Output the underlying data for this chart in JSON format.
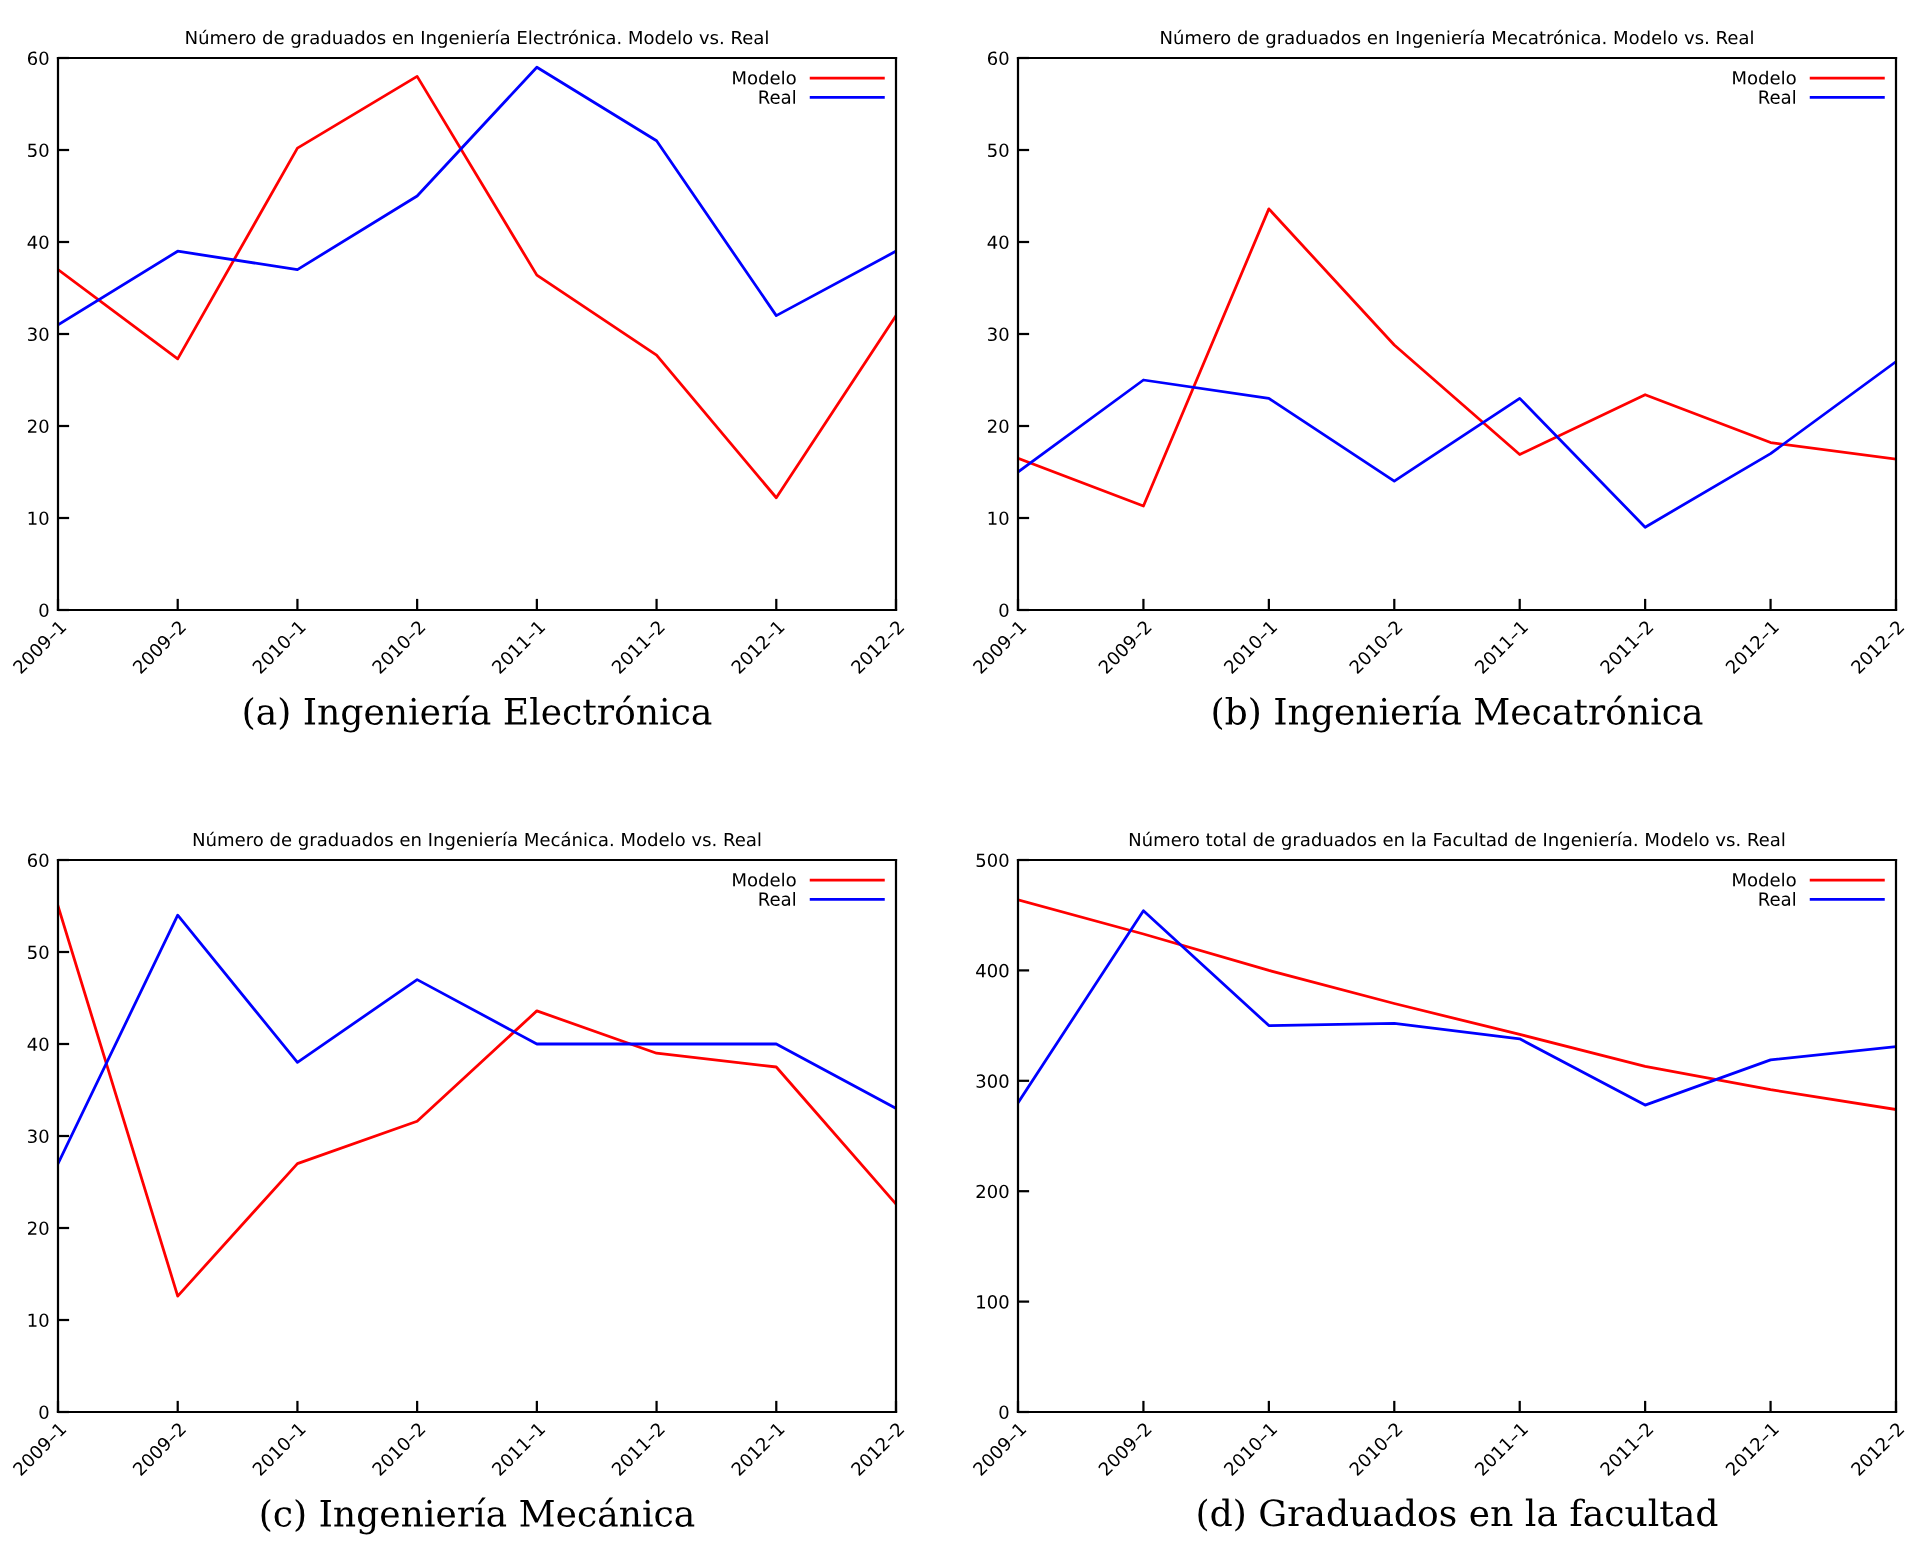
{
  "chart_data": [
    {
      "type": "line",
      "title": "Número de graduados en Ingeniería Electrónica. Modelo vs. Real",
      "categories": [
        "2009–1",
        "2009–2",
        "2010–1",
        "2010–2",
        "2011–1",
        "2011–2",
        "2012–1",
        "2012–2"
      ],
      "series": [
        {
          "name": "Modelo",
          "color": "#ff0000",
          "values": [
            37,
            27.3,
            50.2,
            58,
            36.4,
            27.7,
            12.2,
            32
          ]
        },
        {
          "name": "Real",
          "color": "#0000ff",
          "values": [
            31,
            39,
            37,
            45,
            59,
            51,
            32,
            39
          ]
        }
      ],
      "ylim": [
        0,
        60
      ],
      "yticks": [
        0,
        10,
        20,
        30,
        40,
        50,
        60
      ],
      "legend": "top right",
      "grid": false,
      "annotations": [
        "(a) Ingeniería Electrónica"
      ]
    },
    {
      "type": "line",
      "title": "Número de graduados en Ingeniería Mecatrónica. Modelo vs. Real",
      "categories": [
        "2009–1",
        "2009–2",
        "2010–1",
        "2010–2",
        "2011–1",
        "2011–2",
        "2012–1",
        "2012–2"
      ],
      "series": [
        {
          "name": "Modelo",
          "color": "#ff0000",
          "values": [
            16.5,
            11.3,
            43.6,
            28.8,
            16.9,
            23.4,
            18.2,
            16.4
          ]
        },
        {
          "name": "Real",
          "color": "#0000ff",
          "values": [
            15,
            25,
            23,
            14,
            23,
            9,
            17,
            27
          ]
        }
      ],
      "ylim": [
        0,
        60
      ],
      "yticks": [
        0,
        10,
        20,
        30,
        40,
        50,
        60
      ],
      "legend": "top right",
      "grid": false,
      "annotations": [
        "(b) Ingeniería Mecatrónica"
      ]
    },
    {
      "type": "line",
      "title": "Número de graduados en Ingeniería Mecánica. Modelo vs. Real",
      "categories": [
        "2009–1",
        "2009–2",
        "2010–1",
        "2010–2",
        "2011–1",
        "2011–2",
        "2012–1",
        "2012–2"
      ],
      "series": [
        {
          "name": "Modelo",
          "color": "#ff0000",
          "values": [
            55,
            12.6,
            27,
            31.6,
            43.6,
            39,
            37.5,
            22.6
          ]
        },
        {
          "name": "Real",
          "color": "#0000ff",
          "values": [
            27,
            54,
            38,
            47,
            40,
            40,
            40,
            33
          ]
        }
      ],
      "ylim": [
        0,
        60
      ],
      "yticks": [
        0,
        10,
        20,
        30,
        40,
        50,
        60
      ],
      "legend": "top right",
      "grid": false,
      "annotations": [
        "(c) Ingeniería Mecánica"
      ]
    },
    {
      "type": "line",
      "title": "Número total de graduados en la Facultad de Ingeniería. Modelo vs. Real",
      "categories": [
        "2009–1",
        "2009–2",
        "2010–1",
        "2010–2",
        "2011–1",
        "2011–2",
        "2012–1",
        "2012–2"
      ],
      "series": [
        {
          "name": "Modelo",
          "color": "#ff0000",
          "values": [
            464,
            433,
            400,
            370,
            342,
            313,
            292,
            274
          ]
        },
        {
          "name": "Real",
          "color": "#0000ff",
          "values": [
            280,
            454,
            350,
            352,
            338,
            278,
            319,
            331
          ]
        }
      ],
      "ylim": [
        0,
        500
      ],
      "yticks": [
        0,
        100,
        200,
        300,
        400,
        500
      ],
      "legend": "top right",
      "grid": false,
      "annotations": [
        "(d) Graduados en la facultad"
      ]
    }
  ]
}
